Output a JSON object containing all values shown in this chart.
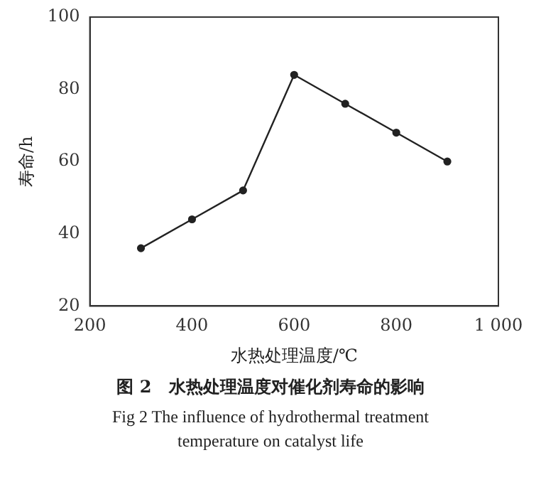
{
  "chart_data": {
    "type": "line",
    "title": "图 2　水热处理温度对催化剂寿命的影响",
    "subtitle": "Fig 2  The influence of hydrothermal treatment temperature on catalyst life",
    "xlabel": "水热处理温度/℃",
    "ylabel": "寿命/h",
    "x": [
      300,
      400,
      500,
      600,
      700,
      800,
      900
    ],
    "series": [
      {
        "color": "#222222",
        "values": [
          36,
          44,
          52,
          84,
          76,
          68,
          60
        ]
      }
    ],
    "xlim": [
      200,
      1000
    ],
    "xticks": [
      200,
      400,
      600,
      800,
      {
        "value": 1000,
        "label": "1 000"
      }
    ],
    "ylim": [
      20,
      100
    ],
    "yticks": [
      20,
      40,
      60,
      80,
      100
    ],
    "grid": false,
    "legend": false,
    "marker": "circle",
    "line_style": "solid"
  }
}
